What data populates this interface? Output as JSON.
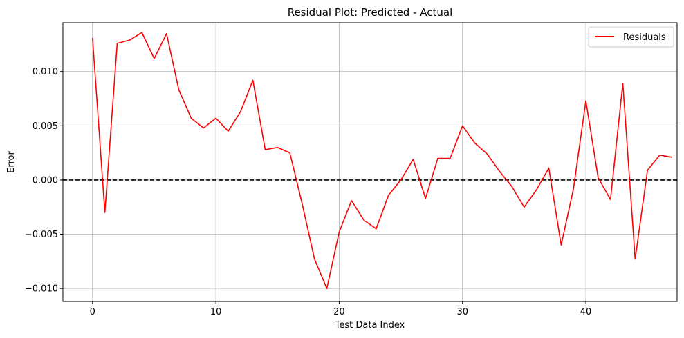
{
  "chart_data": {
    "type": "line",
    "title": "Residual Plot: Predicted - Actual",
    "xlabel": "Test Data Index",
    "ylabel": "Error",
    "xlim": [
      -2.4,
      47.4
    ],
    "ylim": [
      -0.0112,
      0.0145
    ],
    "x_ticks": [
      0,
      10,
      20,
      30,
      40
    ],
    "x_tick_labels": [
      "0",
      "10",
      "20",
      "30",
      "40"
    ],
    "y_ticks": [
      -0.01,
      -0.005,
      0.0,
      0.005,
      0.01
    ],
    "y_tick_labels": [
      "−0.010",
      "−0.005",
      "0.000",
      "0.005",
      "0.010"
    ],
    "grid": true,
    "legend_position": "top-right",
    "reference_line": {
      "y": 0.0,
      "style": "dashed",
      "color": "#000000"
    },
    "series": [
      {
        "name": "Residuals",
        "color": "#ff0000",
        "x": [
          0,
          1,
          2,
          3,
          4,
          5,
          6,
          7,
          8,
          9,
          10,
          11,
          12,
          13,
          14,
          15,
          16,
          17,
          18,
          19,
          20,
          21,
          22,
          23,
          24,
          25,
          26,
          27,
          28,
          29,
          30,
          31,
          32,
          33,
          34,
          35,
          36,
          37,
          38,
          39,
          40,
          41,
          42,
          43,
          44,
          45,
          46,
          47
        ],
        "values": [
          0.0131,
          -0.003,
          0.0126,
          0.0129,
          0.0136,
          0.0112,
          0.0135,
          0.0083,
          0.0057,
          0.0048,
          0.0057,
          0.0045,
          0.0063,
          0.0092,
          0.0028,
          0.003,
          0.0025,
          -0.0022,
          -0.0073,
          -0.01,
          -0.0048,
          -0.0019,
          -0.0037,
          -0.0045,
          -0.0014,
          0.0,
          0.0019,
          -0.0017,
          0.002,
          0.002,
          0.005,
          0.0034,
          0.0024,
          0.0008,
          -0.0006,
          -0.0025,
          -0.0009,
          0.0011,
          -0.006,
          -0.0008,
          0.0073,
          0.0002,
          -0.0018,
          0.0089,
          -0.0073,
          0.0009,
          0.0023,
          0.0021
        ]
      }
    ]
  }
}
